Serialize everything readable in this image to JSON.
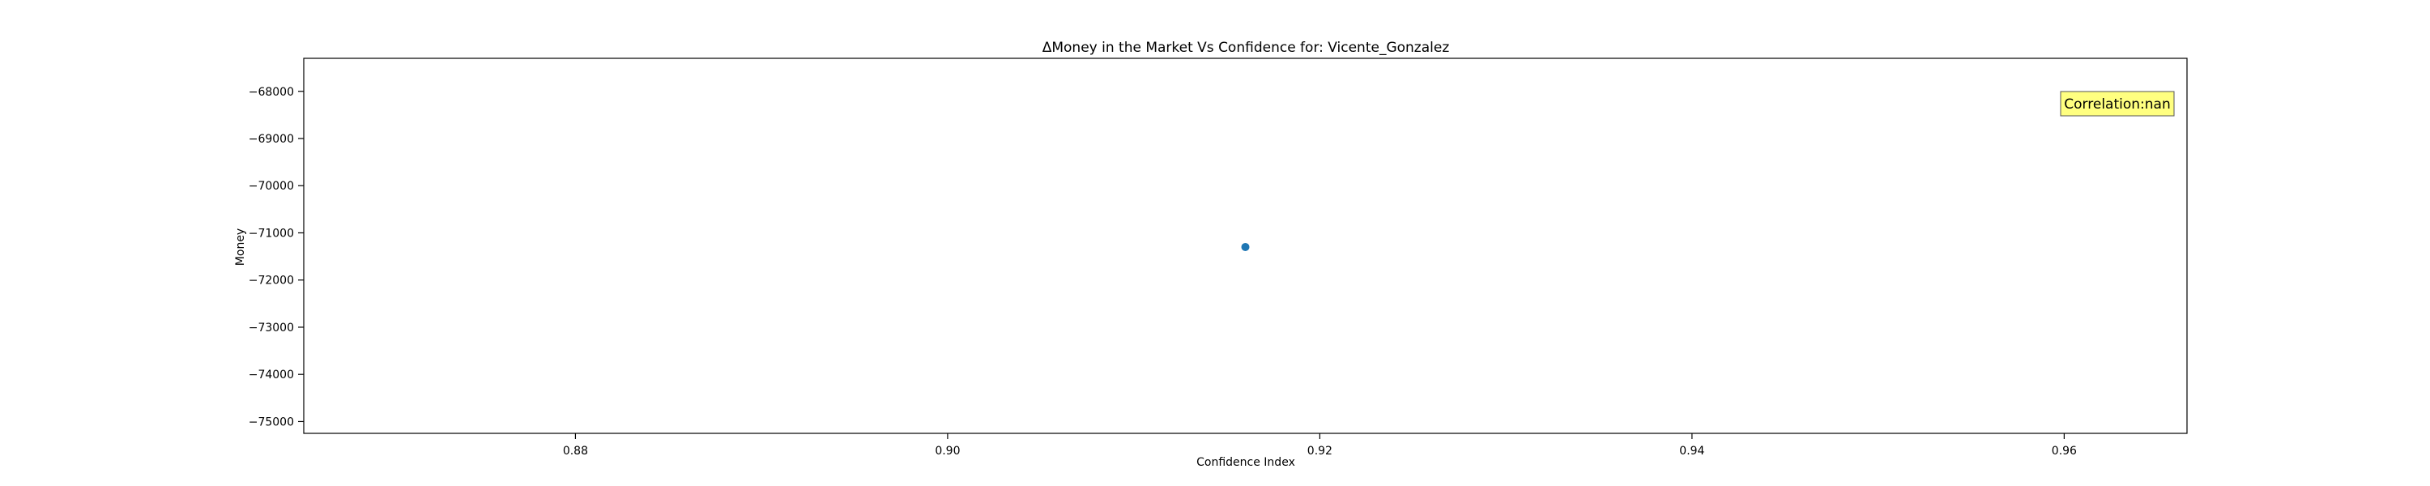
{
  "chart_data": {
    "type": "scatter",
    "title": "ΔMoney in the Market Vs Confidence for: Vicente_Gonzalez",
    "xlabel": "Confidence Index",
    "ylabel": "Money",
    "xlim": [
      0.8654,
      0.9666
    ],
    "ylim": [
      -75250,
      -67300
    ],
    "x_ticks": [
      0.88,
      0.9,
      0.92,
      0.94,
      0.96
    ],
    "x_tick_labels": [
      "0.88",
      "0.90",
      "0.92",
      "0.94",
      "0.96"
    ],
    "y_ticks": [
      -68000,
      -69000,
      -70000,
      -71000,
      -72000,
      -73000,
      -74000,
      -75000
    ],
    "y_tick_labels": [
      "−68000",
      "−69000",
      "−70000",
      "−71000",
      "−72000",
      "−73000",
      "−74000",
      "−75000"
    ],
    "series": [
      {
        "color": "#1f77b4",
        "points": [
          {
            "x": 0.916,
            "y": -71300
          }
        ]
      }
    ],
    "grid": false,
    "annotation": {
      "text": "Correlation:nan",
      "placement": "top-right",
      "face_color": "#ffff80",
      "edge_color": "#555555"
    }
  }
}
